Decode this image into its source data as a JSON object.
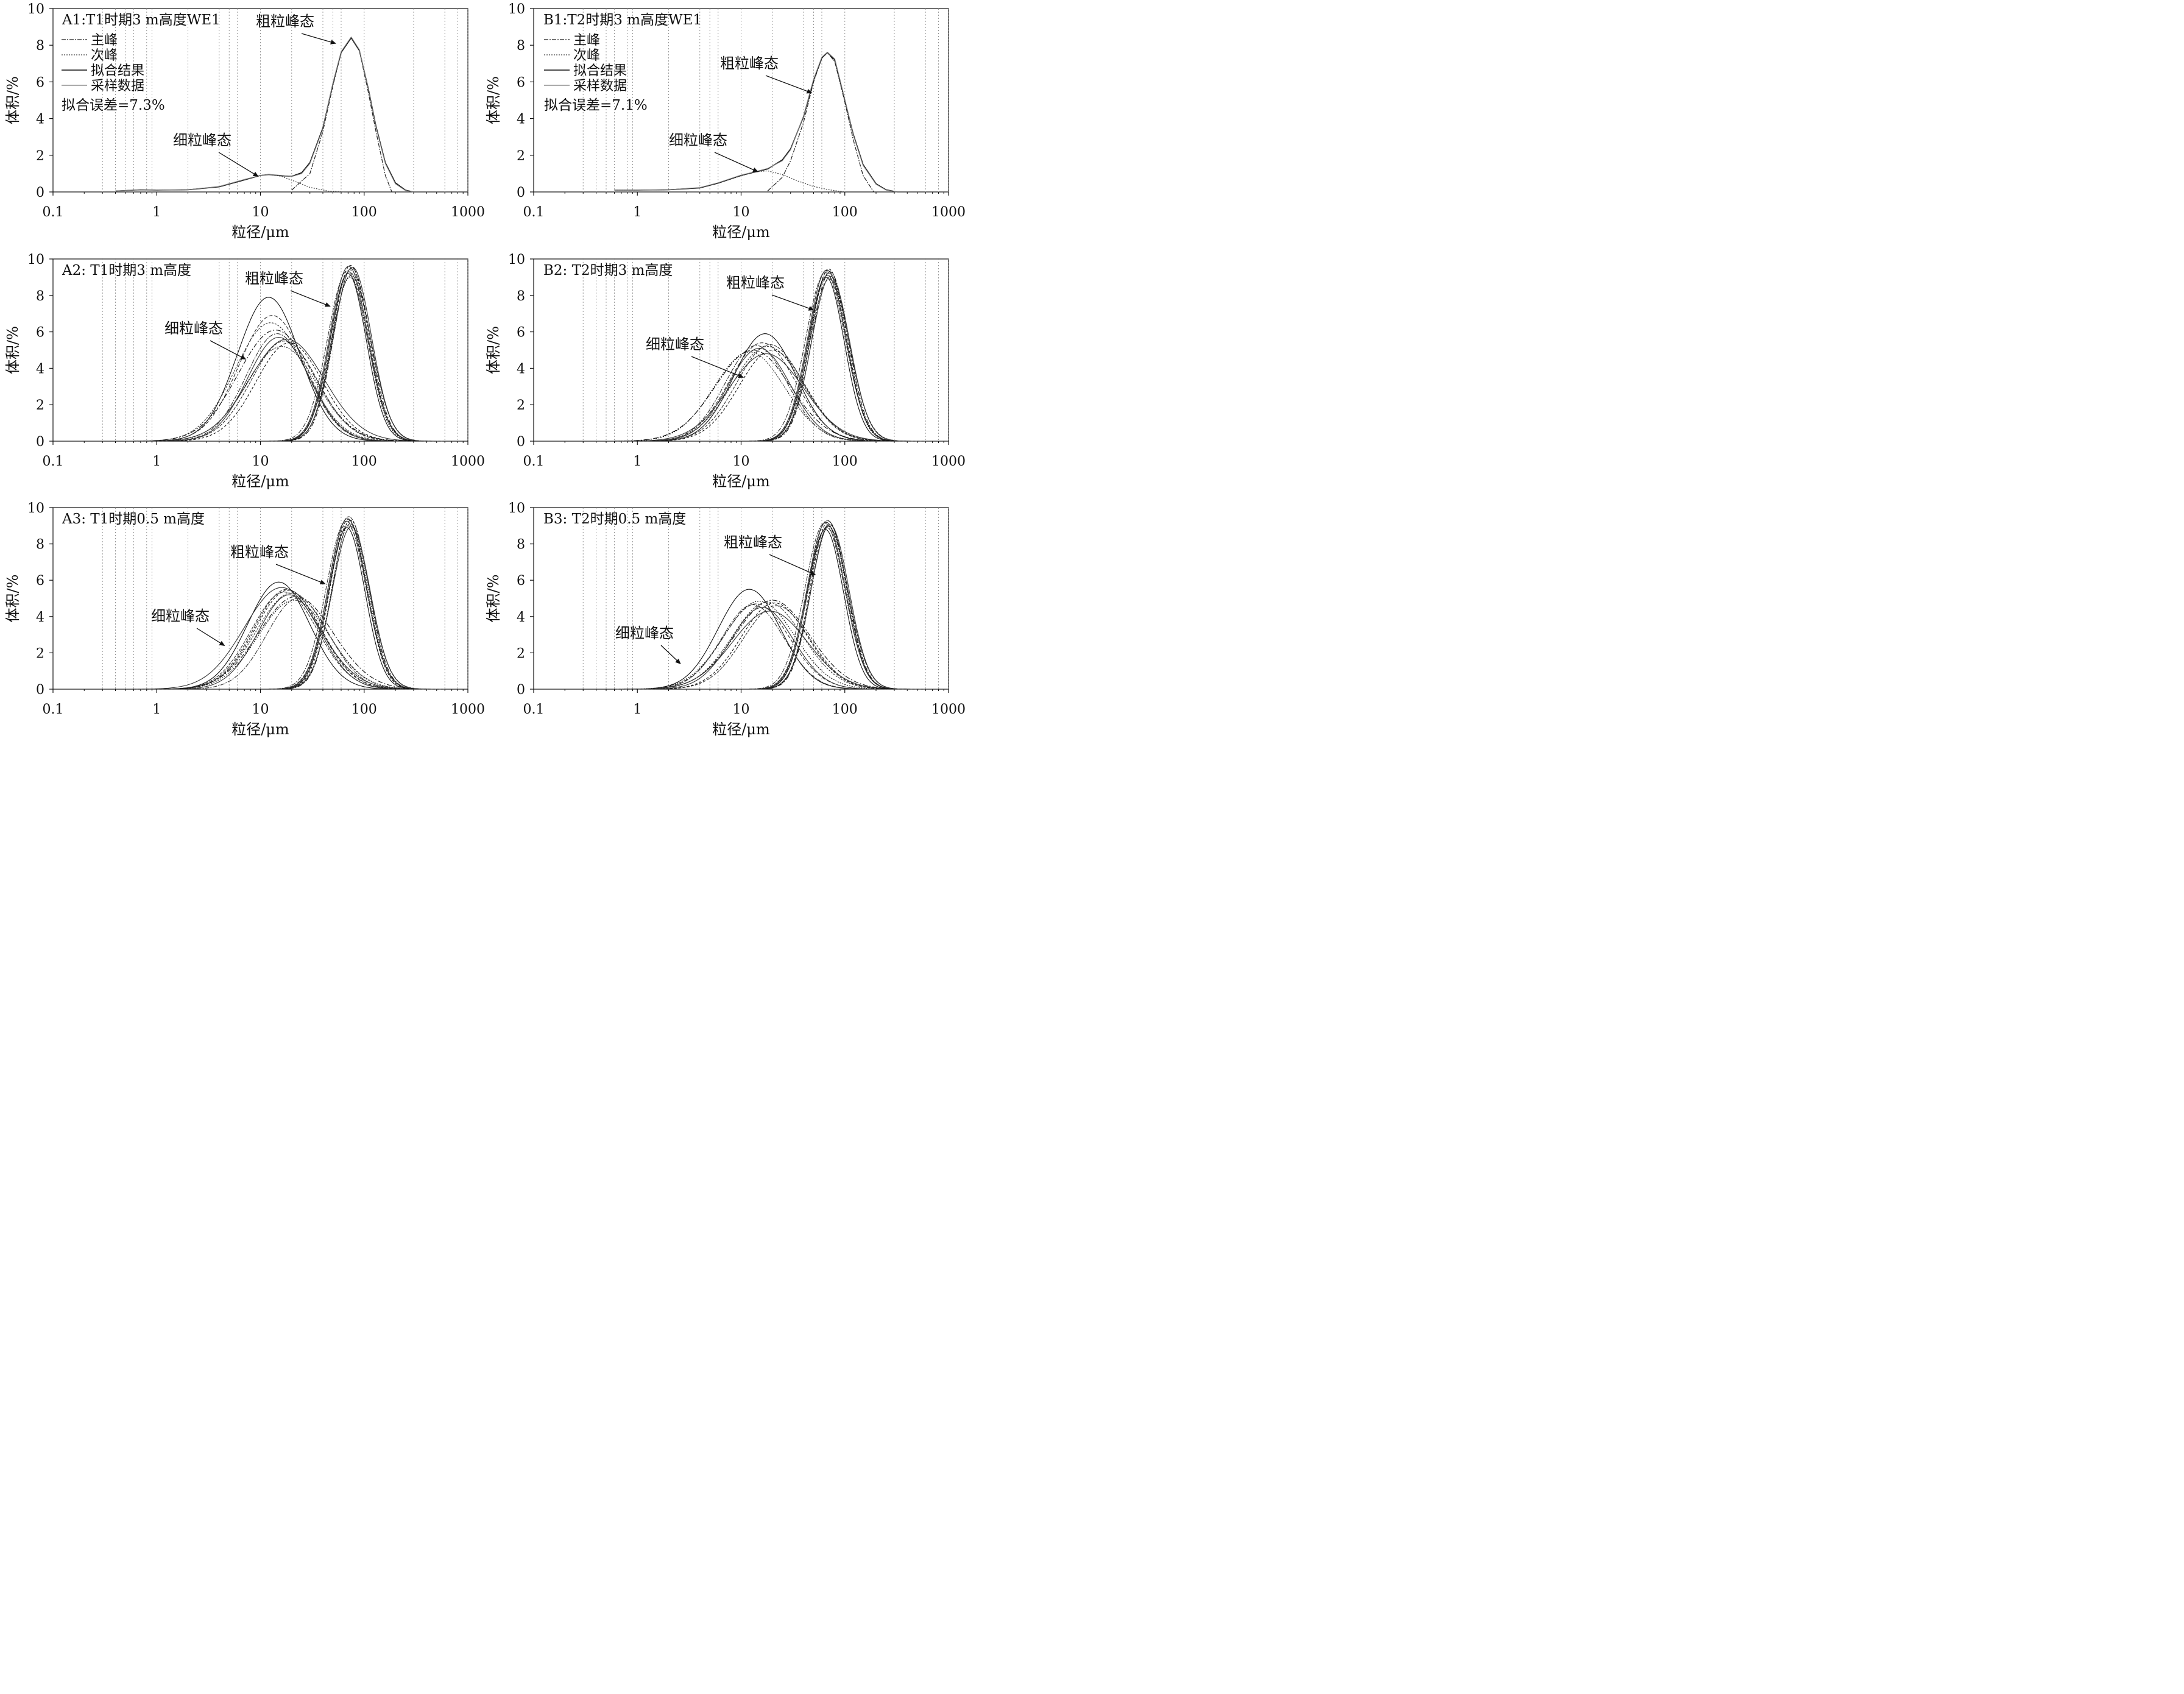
{
  "figure": {
    "xlabel": "粒径/μm",
    "ylabel": "体积/%",
    "annotation_coarse": "粗粒峰态",
    "annotation_fine": "细粒峰态"
  },
  "chart_data": [
    {
      "id": "A1",
      "type": "line",
      "title": "A1:T1时期3 m高度WE1",
      "xlabel": "粒径/μm",
      "ylabel": "体积/%",
      "xscale": "log",
      "xlim": [
        0.1,
        1000
      ],
      "ylim": [
        0,
        10
      ],
      "x_ticks": [
        "0.1",
        "1",
        "10",
        "100",
        "1000"
      ],
      "y_ticks": [
        "0",
        "2",
        "4",
        "6",
        "8",
        "10"
      ],
      "legend": [
        "主峰",
        "次峰",
        "拟合结果",
        "采样数据"
      ],
      "fit_error": "拟合误差=7.3%",
      "annotations": [
        {
          "text": "粗粒峰态",
          "points_to": [
            53,
            8.1
          ]
        },
        {
          "text": "细粒峰态",
          "points_to": [
            9.5,
            0.85
          ]
        }
      ],
      "peaks": {
        "coarse": [
          {
            "mode": 75,
            "height": 8.4
          }
        ],
        "fine": [
          {
            "mode": 12,
            "height": 0.95
          }
        ]
      },
      "series": [
        {
          "name": "主峰",
          "x": [
            20,
            30,
            40,
            50,
            60,
            75,
            90,
            110,
            130,
            160,
            185
          ],
          "y": [
            0.1,
            1.0,
            3.3,
            5.8,
            7.6,
            8.4,
            7.7,
            5.4,
            3.3,
            0.9,
            0.0
          ]
        },
        {
          "name": "次峰",
          "x": [
            0.4,
            0.7,
            1,
            2,
            4,
            7,
            10,
            12,
            16,
            22,
            30,
            45,
            65
          ],
          "y": [
            0.05,
            0.12,
            0.1,
            0.12,
            0.28,
            0.65,
            0.9,
            0.95,
            0.85,
            0.55,
            0.25,
            0.05,
            0.0
          ]
        },
        {
          "name": "拟合结果",
          "x": [
            0.4,
            0.7,
            1,
            2,
            4,
            7,
            10,
            12,
            16,
            20,
            25,
            30,
            40,
            50,
            60,
            75,
            90,
            110,
            130,
            160,
            200,
            250,
            300
          ],
          "y": [
            0.05,
            0.12,
            0.1,
            0.12,
            0.28,
            0.65,
            0.9,
            0.95,
            0.88,
            0.85,
            1.05,
            1.6,
            3.5,
            5.9,
            7.6,
            8.4,
            7.7,
            5.6,
            3.6,
            1.6,
            0.5,
            0.1,
            0.0
          ]
        },
        {
          "name": "采样数据",
          "x": [
            0.4,
            0.7,
            1,
            2,
            4,
            7,
            10,
            12,
            16,
            20,
            25,
            30,
            40,
            50,
            60,
            75,
            90,
            110,
            130,
            160,
            200,
            250,
            300
          ],
          "y": [
            0.05,
            0.12,
            0.1,
            0.12,
            0.3,
            0.68,
            0.9,
            0.96,
            0.9,
            0.84,
            1.0,
            1.55,
            3.45,
            5.95,
            7.65,
            8.45,
            7.75,
            5.55,
            3.55,
            1.55,
            0.45,
            0.08,
            0.0
          ]
        }
      ]
    },
    {
      "id": "B1",
      "type": "line",
      "title": "B1:T2时期3 m高度WE1",
      "xlabel": "粒径/μm",
      "ylabel": "体积/%",
      "xscale": "log",
      "xlim": [
        0.1,
        1000
      ],
      "ylim": [
        0,
        10
      ],
      "x_ticks": [
        "0.1",
        "1",
        "10",
        "100",
        "1000"
      ],
      "y_ticks": [
        "0",
        "2",
        "4",
        "6",
        "8",
        "10"
      ],
      "legend": [
        "主峰",
        "次峰",
        "拟合结果",
        "采样数据"
      ],
      "fit_error": "拟合误差=7.1%",
      "annotations": [
        {
          "text": "粗粒峰态",
          "points_to": [
            48,
            5.4
          ]
        },
        {
          "text": "细粒峰态",
          "points_to": [
            14.5,
            1.1
          ]
        }
      ],
      "peaks": {
        "coarse": [
          {
            "mode": 68,
            "height": 7.6
          }
        ],
        "fine": [
          {
            "mode": 17,
            "height": 1.15
          }
        ]
      },
      "series": [
        {
          "name": "主峰",
          "x": [
            18,
            25,
            30,
            40,
            50,
            60,
            68,
            80,
            100,
            120,
            150,
            190
          ],
          "y": [
            0.05,
            0.8,
            1.7,
            3.8,
            6.0,
            7.3,
            7.6,
            7.1,
            4.9,
            2.9,
            0.9,
            0.0
          ]
        },
        {
          "name": "次峰",
          "x": [
            0.6,
            1,
            2,
            4,
            6,
            10,
            14,
            18,
            25,
            35,
            50,
            70,
            100
          ],
          "y": [
            0.1,
            0.1,
            0.12,
            0.22,
            0.48,
            0.88,
            1.1,
            1.15,
            0.95,
            0.6,
            0.3,
            0.12,
            0.0
          ]
        },
        {
          "name": "拟合结果",
          "x": [
            0.6,
            1,
            2,
            4,
            6,
            10,
            14,
            18,
            25,
            30,
            40,
            50,
            60,
            68,
            80,
            100,
            120,
            150,
            200,
            250,
            320
          ],
          "y": [
            0.1,
            0.1,
            0.12,
            0.22,
            0.48,
            0.9,
            1.1,
            1.25,
            1.75,
            2.35,
            4.1,
            6.1,
            7.3,
            7.6,
            7.2,
            5.0,
            3.2,
            1.5,
            0.45,
            0.12,
            0.0
          ]
        },
        {
          "name": "采样数据",
          "x": [
            0.6,
            1,
            2,
            4,
            6,
            10,
            14,
            18,
            25,
            30,
            40,
            50,
            60,
            68,
            80,
            100,
            120,
            150,
            200,
            250,
            320
          ],
          "y": [
            0.1,
            0.1,
            0.12,
            0.24,
            0.5,
            0.92,
            1.12,
            1.28,
            1.7,
            2.3,
            4.15,
            6.15,
            7.35,
            7.62,
            7.25,
            5.05,
            3.15,
            1.45,
            0.42,
            0.1,
            0.0
          ]
        }
      ]
    },
    {
      "id": "A2",
      "type": "line",
      "title": "A2: T1时期3 m高度",
      "xlabel": "粒径/μm",
      "ylabel": "体积/%",
      "xscale": "log",
      "xlim": [
        0.1,
        1000
      ],
      "ylim": [
        0,
        10
      ],
      "x_ticks": [
        "0.1",
        "1",
        "10",
        "100",
        "1000"
      ],
      "y_ticks": [
        "0",
        "2",
        "4",
        "6",
        "8",
        "10"
      ],
      "annotations": [
        {
          "text": "粗粒峰态",
          "points_to": [
            47,
            7.4
          ]
        },
        {
          "text": "细粒峰态",
          "points_to": [
            7.2,
            4.5
          ]
        }
      ],
      "peaks": {
        "coarse": [
          {
            "mode": 70,
            "height": 9.2
          },
          {
            "mode": 72,
            "height": 9.3
          },
          {
            "mode": 74,
            "height": 9.4
          },
          {
            "mode": 76,
            "height": 9.5
          },
          {
            "mode": 71,
            "height": 9.6
          },
          {
            "mode": 75,
            "height": 9.1
          },
          {
            "mode": 73,
            "height": 9.0
          },
          {
            "mode": 77,
            "height": 9.55
          },
          {
            "mode": 69,
            "height": 9.35
          },
          {
            "mode": 74,
            "height": 9.65
          }
        ],
        "fine": [
          {
            "mode": 12,
            "height": 7.9
          },
          {
            "mode": 13,
            "height": 6.9
          },
          {
            "mode": 12.5,
            "height": 6.5
          },
          {
            "mode": 14,
            "height": 6.1
          },
          {
            "mode": 15,
            "height": 5.7
          },
          {
            "mode": 17,
            "height": 5.5
          },
          {
            "mode": 16,
            "height": 5.2
          },
          {
            "mode": 18,
            "height": 5.6
          },
          {
            "mode": 14.5,
            "height": 5.9
          },
          {
            "mode": 19,
            "height": 5.4
          }
        ]
      }
    },
    {
      "id": "B2",
      "type": "line",
      "title": "B2: T2时期3 m高度",
      "xlabel": "粒径/μm",
      "ylabel": "体积/%",
      "xscale": "log",
      "xlim": [
        0.1,
        1000
      ],
      "ylim": [
        0,
        10
      ],
      "x_ticks": [
        "0.1",
        "1",
        "10",
        "100",
        "1000"
      ],
      "y_ticks": [
        "0",
        "2",
        "4",
        "6",
        "8",
        "10"
      ],
      "annotations": [
        {
          "text": "粗粒峰态",
          "points_to": [
            50,
            7.2
          ]
        },
        {
          "text": "细粒峰态",
          "points_to": [
            10.5,
            3.5
          ]
        }
      ],
      "peaks": {
        "coarse": [
          {
            "mode": 66,
            "height": 9.0
          },
          {
            "mode": 68,
            "height": 9.1
          },
          {
            "mode": 70,
            "height": 9.2
          },
          {
            "mode": 72,
            "height": 9.3
          },
          {
            "mode": 67,
            "height": 9.4
          },
          {
            "mode": 71,
            "height": 8.9
          },
          {
            "mode": 69,
            "height": 9.35
          },
          {
            "mode": 73,
            "height": 9.05
          },
          {
            "mode": 65,
            "height": 9.25
          },
          {
            "mode": 70,
            "height": 9.45
          }
        ],
        "fine": [
          {
            "mode": 17,
            "height": 5.9
          },
          {
            "mode": 16,
            "height": 5.4
          },
          {
            "mode": 18,
            "height": 5.2
          },
          {
            "mode": 13,
            "height": 5.0
          },
          {
            "mode": 15,
            "height": 5.1
          },
          {
            "mode": 19,
            "height": 5.3
          },
          {
            "mode": 12,
            "height": 4.9
          },
          {
            "mode": 17.5,
            "height": 4.8
          },
          {
            "mode": 14,
            "height": 5.25
          },
          {
            "mode": 20,
            "height": 5.0
          }
        ]
      }
    },
    {
      "id": "A3",
      "type": "line",
      "title": "A3: T1时期0.5 m高度",
      "xlabel": "粒径/μm",
      "ylabel": "体积/%",
      "xscale": "log",
      "xlim": [
        0.1,
        1000
      ],
      "ylim": [
        0,
        10
      ],
      "x_ticks": [
        "0.1",
        "1",
        "10",
        "100",
        "1000"
      ],
      "y_ticks": [
        "0",
        "2",
        "4",
        "6",
        "8",
        "10"
      ],
      "annotations": [
        {
          "text": "粗粒峰态",
          "points_to": [
            42,
            5.8
          ]
        },
        {
          "text": "细粒峰态",
          "points_to": [
            4.5,
            2.4
          ]
        }
      ],
      "peaks": {
        "coarse": [
          {
            "mode": 68,
            "height": 8.9
          },
          {
            "mode": 70,
            "height": 9.0
          },
          {
            "mode": 72,
            "height": 9.2
          },
          {
            "mode": 74,
            "height": 9.3
          },
          {
            "mode": 69,
            "height": 9.4
          },
          {
            "mode": 71,
            "height": 9.5
          },
          {
            "mode": 73,
            "height": 9.1
          },
          {
            "mode": 75,
            "height": 8.95
          },
          {
            "mode": 67,
            "height": 9.25
          },
          {
            "mode": 70.5,
            "height": 9.35
          }
        ],
        "fine": [
          {
            "mode": 15,
            "height": 5.9
          },
          {
            "mode": 18,
            "height": 5.5
          },
          {
            "mode": 20,
            "height": 5.3
          },
          {
            "mode": 22,
            "height": 5.1
          },
          {
            "mode": 19,
            "height": 5.2
          },
          {
            "mode": 17,
            "height": 5.35
          },
          {
            "mode": 21,
            "height": 4.9
          },
          {
            "mode": 16,
            "height": 5.6
          },
          {
            "mode": 23,
            "height": 5.0
          },
          {
            "mode": 18.5,
            "height": 5.45
          }
        ]
      }
    },
    {
      "id": "B3",
      "type": "line",
      "title": "B3: T2时期0.5 m高度",
      "xlabel": "粒径/μm",
      "ylabel": "体积/%",
      "xscale": "log",
      "xlim": [
        0.1,
        1000
      ],
      "ylim": [
        0,
        10
      ],
      "x_ticks": [
        "0.1",
        "1",
        "10",
        "100",
        "1000"
      ],
      "y_ticks": [
        "0",
        "2",
        "4",
        "6",
        "8",
        "10"
      ],
      "annotations": [
        {
          "text": "粗粒峰态",
          "points_to": [
            52,
            6.3
          ]
        },
        {
          "text": "细粒峰态",
          "points_to": [
            2.6,
            1.4
          ]
        }
      ],
      "peaks": {
        "coarse": [
          {
            "mode": 65,
            "height": 8.8
          },
          {
            "mode": 67,
            "height": 8.9
          },
          {
            "mode": 69,
            "height": 9.0
          },
          {
            "mode": 71,
            "height": 9.1
          },
          {
            "mode": 66,
            "height": 9.2
          },
          {
            "mode": 68,
            "height": 9.3
          },
          {
            "mode": 70,
            "height": 8.95
          },
          {
            "mode": 72,
            "height": 9.05
          },
          {
            "mode": 64,
            "height": 9.15
          },
          {
            "mode": 69.5,
            "height": 9.25
          }
        ],
        "fine": [
          {
            "mode": 12,
            "height": 5.5
          },
          {
            "mode": 14,
            "height": 4.7
          },
          {
            "mode": 18,
            "height": 4.8
          },
          {
            "mode": 20,
            "height": 4.9
          },
          {
            "mode": 16,
            "height": 4.5
          },
          {
            "mode": 22,
            "height": 4.6
          },
          {
            "mode": 15,
            "height": 4.85
          },
          {
            "mode": 19,
            "height": 4.3
          },
          {
            "mode": 13,
            "height": 4.65
          },
          {
            "mode": 21,
            "height": 4.75
          }
        ]
      }
    }
  ]
}
